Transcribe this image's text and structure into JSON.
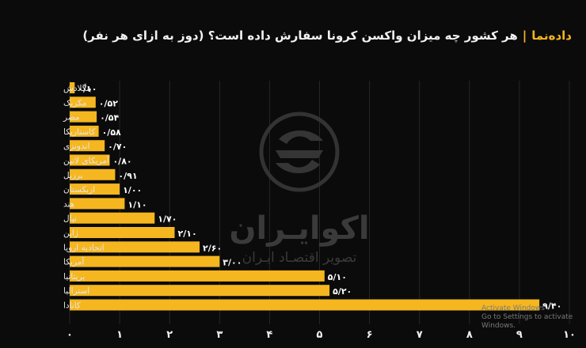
{
  "header": {
    "brand": "داده‌نما",
    "separator": "|",
    "title": "هر کشور چه میزان واکسن کرونا سفارش داده است؟ (دوز به ازای هر نفر)"
  },
  "watermark": {
    "name": "اکوایـران",
    "tagline": "تصویر اقتصـاد ایـران",
    "logo_icon": "ecoiran-logo-icon"
  },
  "os_overlay": {
    "line1": "Activate Windows",
    "line2": "Go to Settings to activate Windows."
  },
  "colors": {
    "bar": "#f5b61f",
    "background": "#0b0b0b",
    "text": "#ffffff"
  },
  "chart_data": {
    "type": "bar",
    "orientation": "horizontal",
    "categories": [
      "بنگلادش",
      "مکزیک",
      "مصر",
      "کاستاریکا",
      "اندونزی",
      "آمریکای لاتین",
      "برزیل",
      "ازبکستان",
      "هند",
      "نپال",
      "ژاپن",
      "اتحادیه اروپا",
      "آمریکا",
      "بریتانیا",
      "استرالیا",
      "کانادا"
    ],
    "values": [
      0.1,
      0.52,
      0.54,
      0.58,
      0.7,
      0.8,
      0.91,
      1.0,
      1.1,
      1.7,
      2.1,
      2.6,
      3.0,
      5.1,
      5.2,
      9.4
    ],
    "value_labels": [
      "۰/۱۰",
      "۰/۵۲",
      "۰/۵۴",
      "۰/۵۸",
      "۰/۷۰",
      "۰/۸۰",
      "۰/۹۱",
      "۱/۰۰",
      "۱/۱۰",
      "۱/۷۰",
      "۲/۱۰",
      "۲/۶۰",
      "۳/۰۰",
      "۵/۱۰",
      "۵/۲۰",
      "۹/۴۰"
    ],
    "x_ticks": [
      0,
      1,
      2,
      3,
      4,
      5,
      6,
      7,
      8,
      9,
      10
    ],
    "x_tick_labels": [
      "۰",
      "۱",
      "۲",
      "۳",
      "۴",
      "۵",
      "۶",
      "۷",
      "۸",
      "۹",
      "۱۰"
    ],
    "xlim": [
      0,
      10
    ],
    "grid": true,
    "title": "هر کشور چه میزان واکسن کرونا سفارش داده است؟ (دوز به ازای هر نفر)"
  }
}
